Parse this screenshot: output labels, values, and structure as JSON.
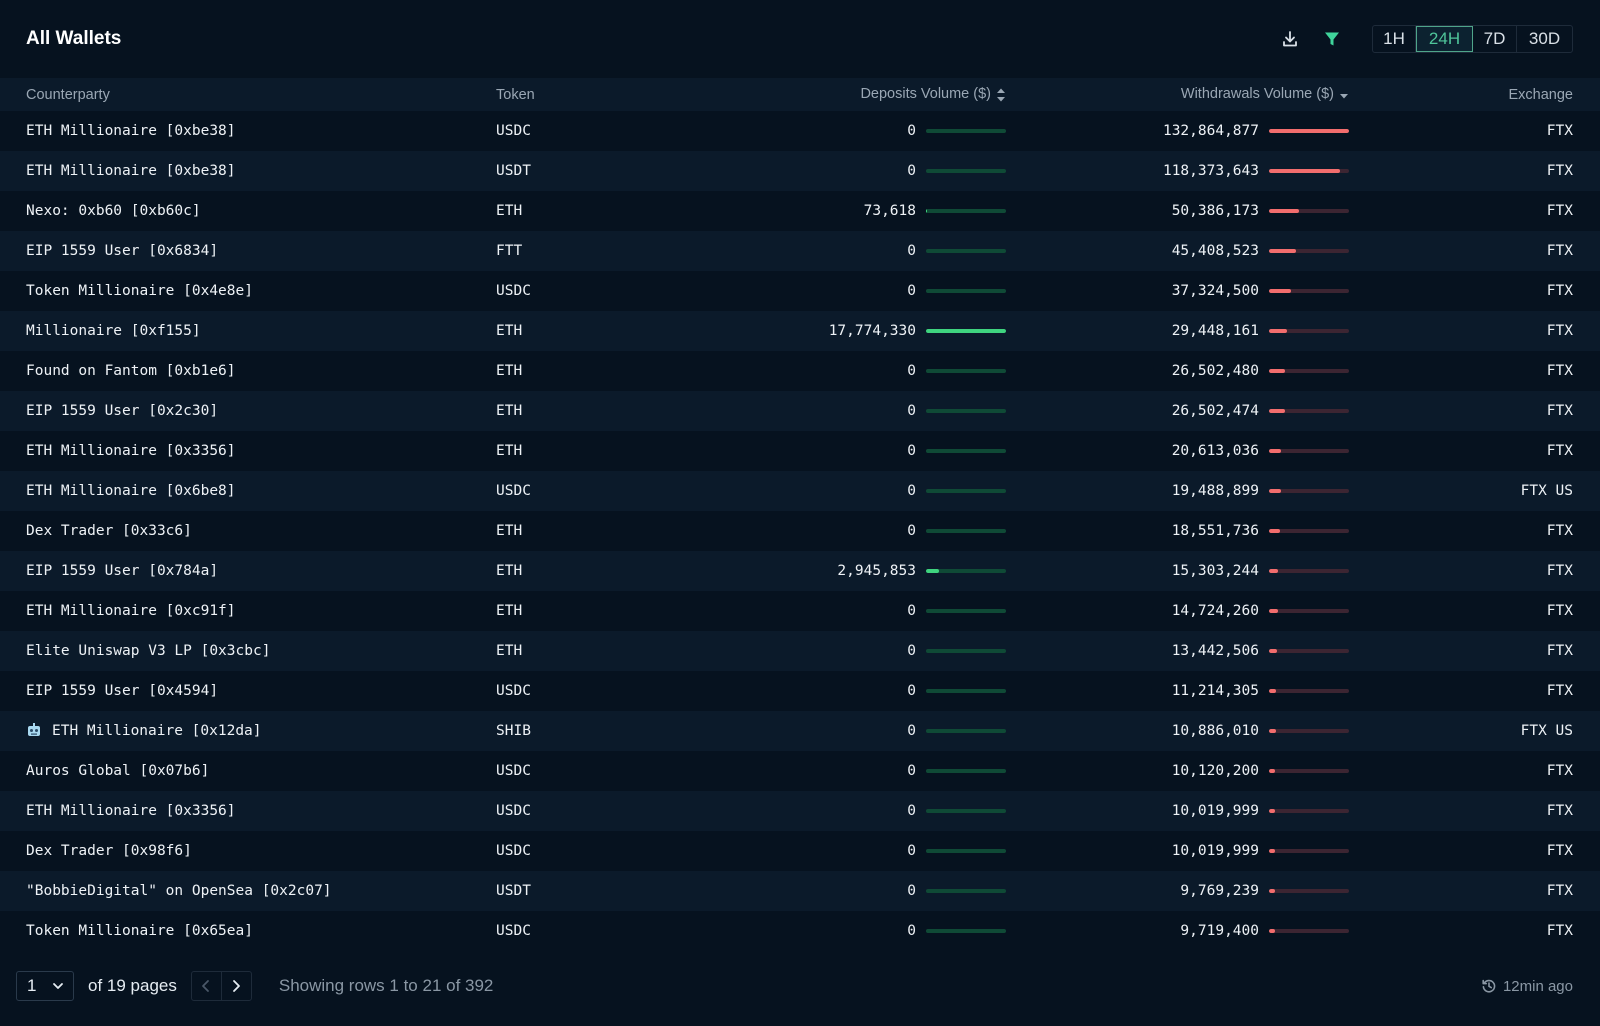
{
  "header": {
    "title": "All Wallets",
    "timeframes": [
      "1H",
      "24H",
      "7D",
      "30D"
    ],
    "active_timeframe": "24H"
  },
  "table": {
    "columns": {
      "counterparty": "Counterparty",
      "token": "Token",
      "deposits": "Deposits Volume ($)",
      "withdrawals": "Withdrawals Volume ($)",
      "exchange": "Exchange"
    },
    "max_deposit": 17774330,
    "max_withdrawal": 132864877,
    "rows": [
      {
        "counterparty": "ETH Millionaire [0xbe38]",
        "token": "USDC",
        "deposit": "0",
        "deposit_value": 0,
        "withdrawal": "132,864,877",
        "withdrawal_value": 132864877,
        "exchange": "FTX"
      },
      {
        "counterparty": "ETH Millionaire [0xbe38]",
        "token": "USDT",
        "deposit": "0",
        "deposit_value": 0,
        "withdrawal": "118,373,643",
        "withdrawal_value": 118373643,
        "exchange": "FTX"
      },
      {
        "counterparty": "Nexo: 0xb60 [0xb60c]",
        "token": "ETH",
        "deposit": "73,618",
        "deposit_value": 73618,
        "withdrawal": "50,386,173",
        "withdrawal_value": 50386173,
        "exchange": "FTX"
      },
      {
        "counterparty": "EIP 1559 User [0x6834]",
        "token": "FTT",
        "deposit": "0",
        "deposit_value": 0,
        "withdrawal": "45,408,523",
        "withdrawal_value": 45408523,
        "exchange": "FTX"
      },
      {
        "counterparty": "Token Millionaire [0x4e8e]",
        "token": "USDC",
        "deposit": "0",
        "deposit_value": 0,
        "withdrawal": "37,324,500",
        "withdrawal_value": 37324500,
        "exchange": "FTX"
      },
      {
        "counterparty": "Millionaire [0xf155]",
        "token": "ETH",
        "deposit": "17,774,330",
        "deposit_value": 17774330,
        "withdrawal": "29,448,161",
        "withdrawal_value": 29448161,
        "exchange": "FTX"
      },
      {
        "counterparty": "Found on Fantom [0xb1e6]",
        "token": "ETH",
        "deposit": "0",
        "deposit_value": 0,
        "withdrawal": "26,502,480",
        "withdrawal_value": 26502480,
        "exchange": "FTX"
      },
      {
        "counterparty": "EIP 1559 User [0x2c30]",
        "token": "ETH",
        "deposit": "0",
        "deposit_value": 0,
        "withdrawal": "26,502,474",
        "withdrawal_value": 26502474,
        "exchange": "FTX"
      },
      {
        "counterparty": "ETH Millionaire [0x3356]",
        "token": "ETH",
        "deposit": "0",
        "deposit_value": 0,
        "withdrawal": "20,613,036",
        "withdrawal_value": 20613036,
        "exchange": "FTX"
      },
      {
        "counterparty": "ETH Millionaire [0x6be8]",
        "token": "USDC",
        "deposit": "0",
        "deposit_value": 0,
        "withdrawal": "19,488,899",
        "withdrawal_value": 19488899,
        "exchange": "FTX US"
      },
      {
        "counterparty": "Dex Trader [0x33c6]",
        "token": "ETH",
        "deposit": "0",
        "deposit_value": 0,
        "withdrawal": "18,551,736",
        "withdrawal_value": 18551736,
        "exchange": "FTX"
      },
      {
        "counterparty": "EIP 1559 User [0x784a]",
        "token": "ETH",
        "deposit": "2,945,853",
        "deposit_value": 2945853,
        "withdrawal": "15,303,244",
        "withdrawal_value": 15303244,
        "exchange": "FTX"
      },
      {
        "counterparty": "ETH Millionaire [0xc91f]",
        "token": "ETH",
        "deposit": "0",
        "deposit_value": 0,
        "withdrawal": "14,724,260",
        "withdrawal_value": 14724260,
        "exchange": "FTX"
      },
      {
        "counterparty": "Elite Uniswap V3 LP [0x3cbc]",
        "token": "ETH",
        "deposit": "0",
        "deposit_value": 0,
        "withdrawal": "13,442,506",
        "withdrawal_value": 13442506,
        "exchange": "FTX"
      },
      {
        "counterparty": "EIP 1559 User [0x4594]",
        "token": "USDC",
        "deposit": "0",
        "deposit_value": 0,
        "withdrawal": "11,214,305",
        "withdrawal_value": 11214305,
        "exchange": "FTX"
      },
      {
        "counterparty": "ETH Millionaire [0x12da]",
        "token": "SHIB",
        "deposit": "0",
        "deposit_value": 0,
        "withdrawal": "10,886,010",
        "withdrawal_value": 10886010,
        "exchange": "FTX US",
        "icon": "robot-icon"
      },
      {
        "counterparty": "Auros Global [0x07b6]",
        "token": "USDC",
        "deposit": "0",
        "deposit_value": 0,
        "withdrawal": "10,120,200",
        "withdrawal_value": 10120200,
        "exchange": "FTX"
      },
      {
        "counterparty": "ETH Millionaire [0x3356]",
        "token": "USDC",
        "deposit": "0",
        "deposit_value": 0,
        "withdrawal": "10,019,999",
        "withdrawal_value": 10019999,
        "exchange": "FTX"
      },
      {
        "counterparty": "Dex Trader [0x98f6]",
        "token": "USDC",
        "deposit": "0",
        "deposit_value": 0,
        "withdrawal": "10,019,999",
        "withdrawal_value": 10019999,
        "exchange": "FTX"
      },
      {
        "counterparty": "\"BobbieDigital\" on OpenSea [0x2c07]",
        "token": "USDT",
        "deposit": "0",
        "deposit_value": 0,
        "withdrawal": "9,769,239",
        "withdrawal_value": 9769239,
        "exchange": "FTX"
      },
      {
        "counterparty": "Token Millionaire [0x65ea]",
        "token": "USDC",
        "deposit": "0",
        "deposit_value": 0,
        "withdrawal": "9,719,400",
        "withdrawal_value": 9719400,
        "exchange": "FTX"
      }
    ]
  },
  "footer": {
    "page_value": "1",
    "of_pages": "of 19 pages",
    "showing": "Showing rows 1 to 21 of 392",
    "updated": "12min ago"
  },
  "colors": {
    "background": "#06121f",
    "accent": "#4fc59a",
    "deposit_bar": "#3fd47f",
    "withdrawal_bar": "#f26d6d"
  }
}
